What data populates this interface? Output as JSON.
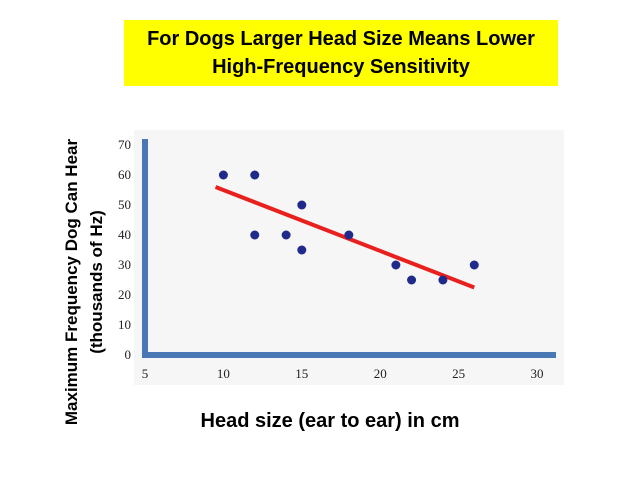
{
  "chart_data": {
    "type": "scatter",
    "title_lines": [
      "For Dogs Larger Head Size Means Lower",
      "High-Frequency Sensitivity"
    ],
    "xlabel": "Head size (ear to ear) in cm",
    "ylabel_lines": [
      "Maximum Frequency  Dog Can Hear",
      "(thousands of Hz)"
    ],
    "xlim": [
      5,
      30
    ],
    "ylim": [
      0,
      70
    ],
    "xticks": [
      "5",
      "10",
      "15",
      "20",
      "25",
      "30"
    ],
    "yticks": [
      "0",
      "10",
      "20",
      "30",
      "40",
      "50",
      "60",
      "70"
    ],
    "points": [
      {
        "x": 10,
        "y": 60
      },
      {
        "x": 12,
        "y": 60
      },
      {
        "x": 12,
        "y": 40
      },
      {
        "x": 14,
        "y": 40
      },
      {
        "x": 15,
        "y": 50
      },
      {
        "x": 15,
        "y": 35
      },
      {
        "x": 18,
        "y": 40
      },
      {
        "x": 21,
        "y": 30
      },
      {
        "x": 22,
        "y": 25
      },
      {
        "x": 24,
        "y": 25
      },
      {
        "x": 26,
        "y": 30
      }
    ],
    "trend_line": {
      "x": [
        9.5,
        26
      ],
      "y": [
        56,
        22.5
      ]
    },
    "colors": {
      "points": "#1f2a8a",
      "trend": "#e8201e",
      "axes": "#4a78b4",
      "title_bg": "#ffff00"
    }
  }
}
